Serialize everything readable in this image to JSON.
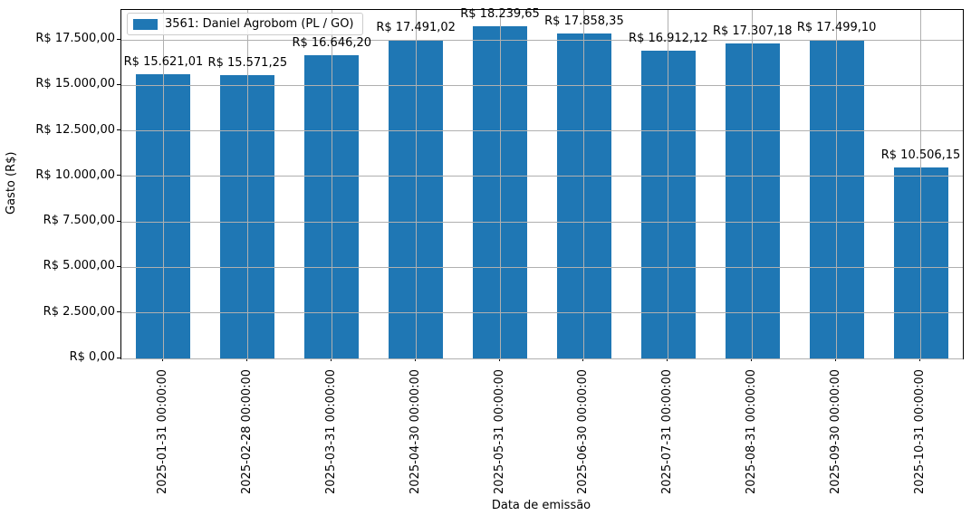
{
  "chart_data": {
    "type": "bar",
    "title": "",
    "xlabel": "Data de emissão",
    "ylabel": "Gasto (R$)",
    "legend_position": "upper-left",
    "grid": true,
    "bar_color": "#1f77b4",
    "grid_color": "#b0b0b0",
    "ylim": [
      0,
      19151.63
    ],
    "categories": [
      "2025-01-31 00:00:00",
      "2025-02-28 00:00:00",
      "2025-03-31 00:00:00",
      "2025-04-30 00:00:00",
      "2025-05-31 00:00:00",
      "2025-06-30 00:00:00",
      "2025-07-31 00:00:00",
      "2025-08-31 00:00:00",
      "2025-09-30 00:00:00",
      "2025-10-31 00:00:00"
    ],
    "series": [
      {
        "name": "3561: Daniel Agrobom (PL / GO)",
        "values": [
          15621.01,
          15571.25,
          16646.2,
          17491.02,
          18239.65,
          17858.35,
          16912.12,
          17307.18,
          17499.1,
          10506.15
        ]
      }
    ],
    "value_labels": [
      "R$ 15.621,01",
      "R$ 15.571,25",
      "R$ 16.646,20",
      "R$ 17.491,02",
      "R$ 18.239,65",
      "R$ 17.858,35",
      "R$ 16.912,12",
      "R$ 17.307,18",
      "R$ 17.499,10",
      "R$ 10.506,15"
    ],
    "y_ticks": [
      {
        "value": 0,
        "label": "R$ 0,00"
      },
      {
        "value": 2500,
        "label": "R$ 2.500,00"
      },
      {
        "value": 5000,
        "label": "R$ 5.000,00"
      },
      {
        "value": 7500,
        "label": "R$ 7.500,00"
      },
      {
        "value": 10000,
        "label": "R$ 10.000,00"
      },
      {
        "value": 12500,
        "label": "R$ 12.500,00"
      },
      {
        "value": 15000,
        "label": "R$ 15.000,00"
      },
      {
        "value": 17500,
        "label": "R$ 17.500,00"
      }
    ]
  }
}
